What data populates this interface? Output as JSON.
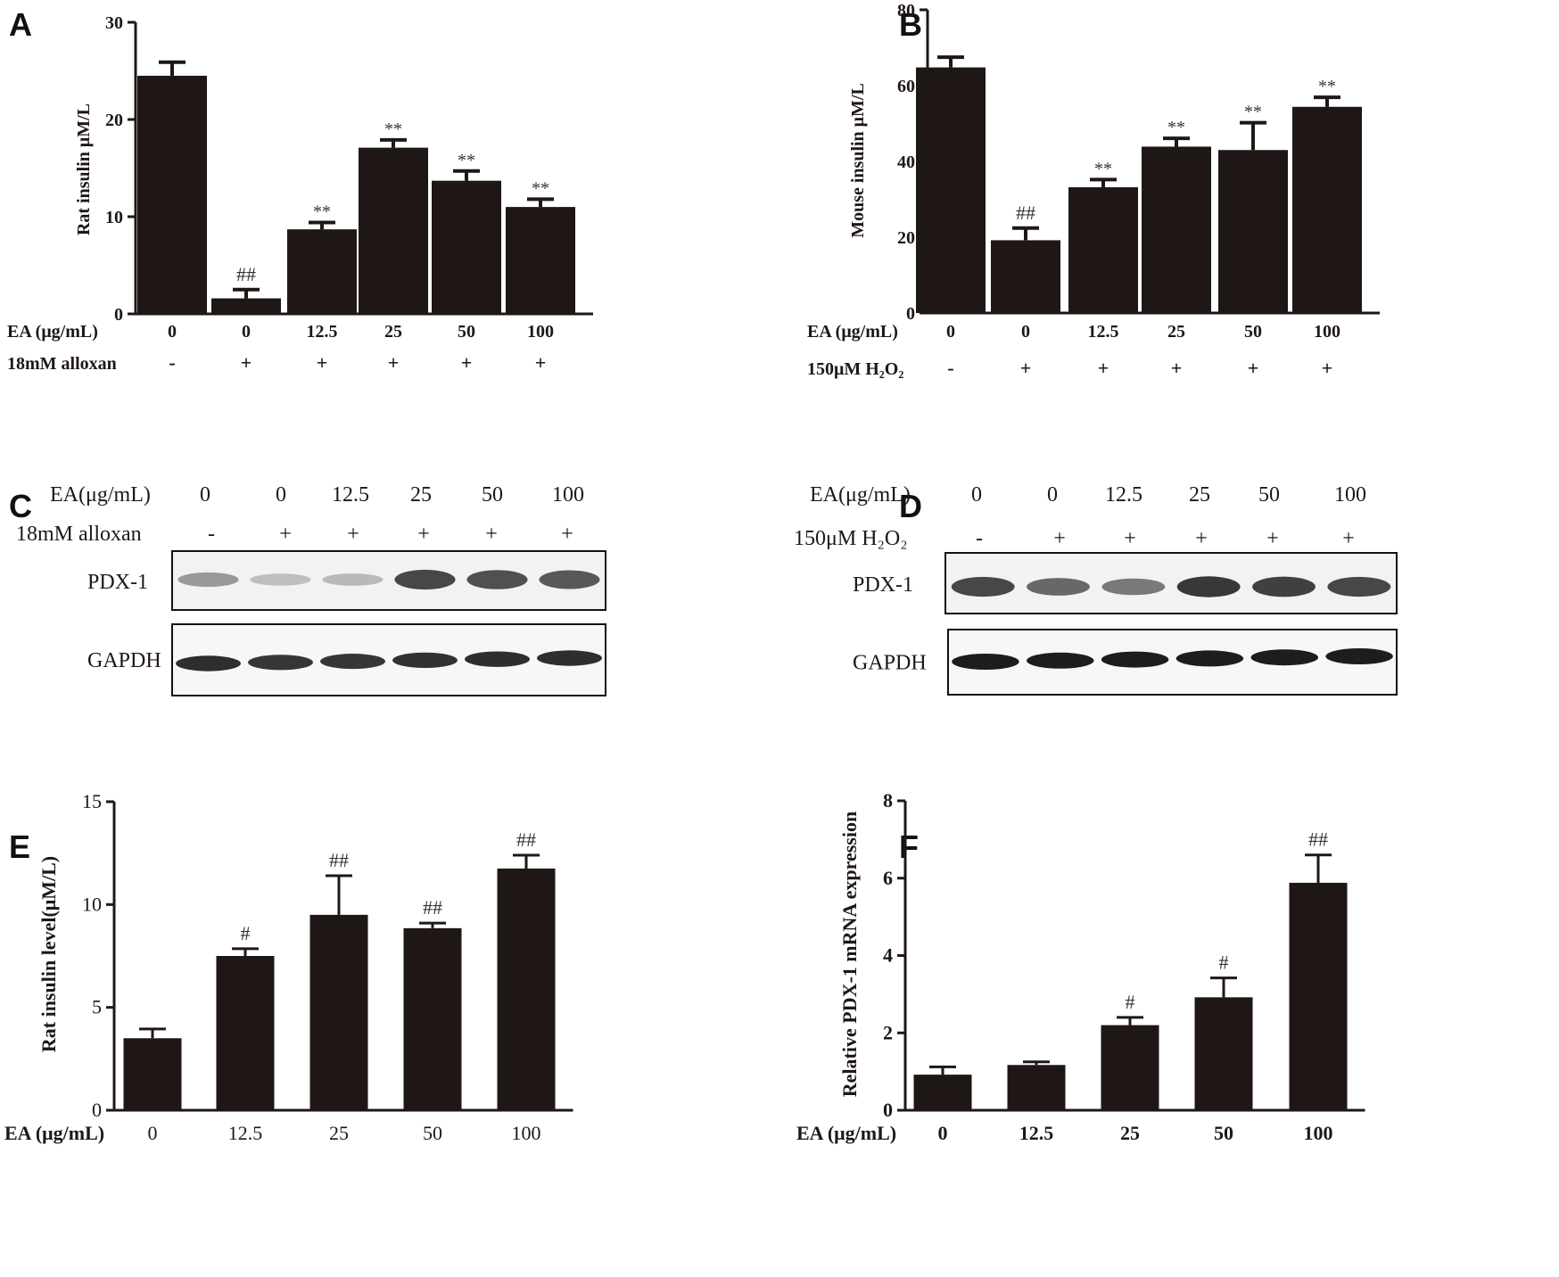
{
  "chart_data": [
    {
      "panel": "A",
      "type": "bar",
      "ylabel": "Rat insulin μM/L",
      "ylim": [
        0,
        30
      ],
      "yticks": [
        0,
        10,
        20,
        30
      ],
      "row_labels": [
        "EA (μg/mL)",
        "18mM alloxan"
      ],
      "categories": [
        "0",
        "0",
        "12.5",
        "25",
        "50",
        "100"
      ],
      "row2": [
        "-",
        "+",
        "+",
        "+",
        "+",
        "+"
      ],
      "values": [
        24.5,
        1.6,
        8.7,
        17.1,
        13.7,
        11.0
      ],
      "errors": [
        1.4,
        0.9,
        0.7,
        0.8,
        1.0,
        0.8
      ],
      "annotations": [
        "",
        "##",
        "**",
        "**",
        "**",
        "**"
      ]
    },
    {
      "panel": "B",
      "type": "bar",
      "ylabel": "Mouse insulin μM/L",
      "ylim": [
        0,
        80
      ],
      "yticks": [
        0,
        20,
        40,
        60,
        80
      ],
      "row_labels": [
        "EA (μg/mL)",
        "150μM H₂O₂"
      ],
      "categories": [
        "0",
        "0",
        "12.5",
        "25",
        "50",
        "100"
      ],
      "row2": [
        "-",
        "+",
        "+",
        "+",
        "+",
        "+"
      ],
      "values": [
        64.8,
        19.2,
        33.2,
        43.9,
        43.0,
        54.4
      ],
      "errors": [
        2.7,
        3.2,
        2.0,
        2.2,
        7.2,
        2.5
      ],
      "annotations": [
        "",
        "##",
        "**",
        "**",
        "**",
        "**"
      ]
    },
    {
      "panel": "E",
      "type": "bar",
      "ylabel": "Rat insulin level(μM/L)",
      "ylim": [
        0,
        15
      ],
      "yticks": [
        0,
        5,
        10,
        15
      ],
      "row_labels": [
        "EA (μg/mL)"
      ],
      "categories": [
        "0",
        "12.5",
        "25",
        "50",
        "100"
      ],
      "values": [
        3.5,
        7.5,
        9.5,
        8.85,
        11.75
      ],
      "errors": [
        0.45,
        0.35,
        1.9,
        0.25,
        0.65
      ],
      "annotations": [
        "",
        "#",
        "##",
        "##",
        "##"
      ]
    },
    {
      "panel": "F",
      "type": "bar",
      "ylabel": "Relative PDX-1 mRNA expression",
      "ylim": [
        0,
        8
      ],
      "yticks": [
        0,
        2,
        4,
        6,
        8
      ],
      "row_labels": [
        "EA (μg/mL)"
      ],
      "categories": [
        "0",
        "12.5",
        "25",
        "50",
        "100"
      ],
      "values": [
        0.92,
        1.17,
        2.2,
        2.92,
        5.88
      ],
      "errors": [
        0.2,
        0.08,
        0.2,
        0.5,
        0.72
      ],
      "annotations": [
        "",
        "",
        "#",
        "#",
        "##"
      ]
    }
  ],
  "blots": [
    {
      "panel": "C",
      "row_labels": [
        "EA(μg/mL)",
        "18mM alloxan"
      ],
      "doses": [
        "0",
        "0",
        "12.5",
        "25",
        "50",
        "100"
      ],
      "treatment": [
        "-",
        "+",
        "+",
        "+",
        "+",
        "+"
      ],
      "bands": [
        "PDX-1",
        "GAPDH"
      ],
      "pdx1_intensity": [
        0.35,
        0.12,
        0.15,
        0.85,
        0.8,
        0.75
      ],
      "gapdh_intensity": [
        0.9,
        0.85,
        0.85,
        0.88,
        0.9,
        0.9
      ]
    },
    {
      "panel": "D",
      "row_labels": [
        "EA(μg/mL)",
        "150μM H₂O₂"
      ],
      "doses": [
        "0",
        "0",
        "12.5",
        "25",
        "50",
        "100"
      ],
      "treatment": [
        "-",
        "+",
        "+",
        "+",
        "+",
        "+"
      ],
      "bands": [
        "PDX-1",
        "GAPDH"
      ],
      "pdx1_intensity": [
        0.85,
        0.65,
        0.55,
        0.95,
        0.9,
        0.85
      ],
      "gapdh_intensity": [
        1.0,
        1.0,
        1.0,
        1.0,
        1.0,
        1.0
      ]
    }
  ]
}
